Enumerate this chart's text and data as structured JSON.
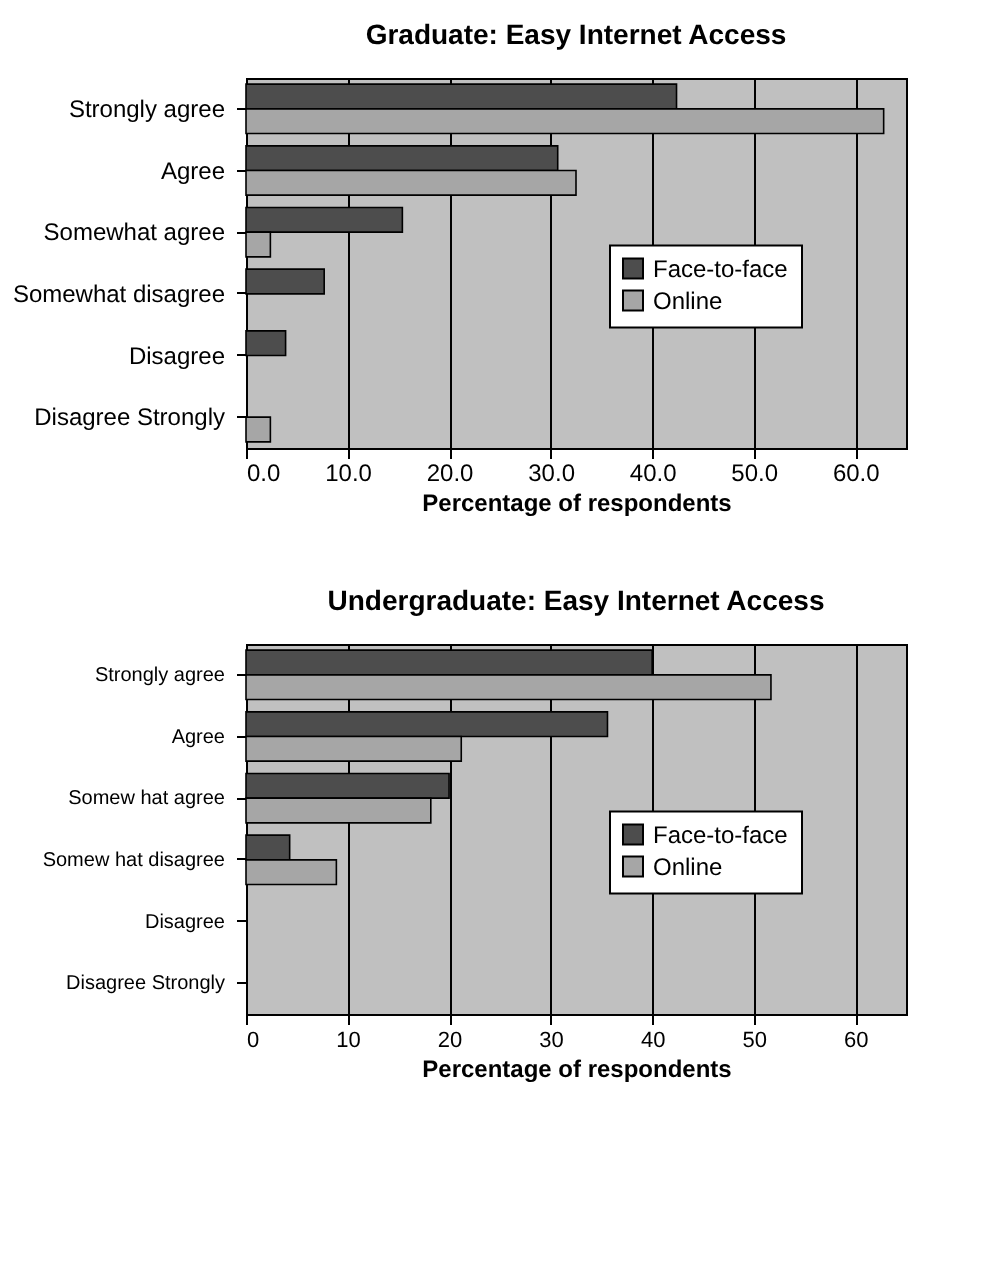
{
  "chart_data": [
    {
      "type": "bar",
      "orientation": "horizontal",
      "title": "Graduate: Easy Internet Access",
      "xlabel": "Percentage of respondents",
      "categories": [
        "Strongly agree",
        "Agree",
        "Somewhat agree",
        "Somewhat disagree",
        "Disagree",
        "Disagree Strongly"
      ],
      "series": [
        {
          "name": "Face-to-face",
          "color": "#4d4d4d",
          "values": [
            42.4,
            30.7,
            15.4,
            7.7,
            3.9,
            null
          ]
        },
        {
          "name": "Online",
          "color": "#a6a6a6",
          "values": [
            62.8,
            32.5,
            2.4,
            null,
            null,
            2.4
          ]
        }
      ],
      "xlim": [
        0,
        65
      ],
      "xticks": [
        {
          "value": 0,
          "label": "0.0"
        },
        {
          "value": 10,
          "label": "10.0"
        },
        {
          "value": 20,
          "label": "20.0"
        },
        {
          "value": 30,
          "label": "30.0"
        },
        {
          "value": 40,
          "label": "40.0"
        },
        {
          "value": 50,
          "label": "50.0"
        },
        {
          "value": 60,
          "label": "60.0"
        }
      ],
      "grid": "x",
      "legend": "right"
    },
    {
      "type": "bar",
      "orientation": "horizontal",
      "title": "Undergraduate: Easy Internet Access",
      "xlabel": "Percentage of respondents",
      "categories": [
        "Strongly agree",
        "Agree",
        "Somew hat agree",
        "Somew hat disagree",
        "Disagree",
        "Disagree Strongly"
      ],
      "series": [
        {
          "name": "Face-to-face",
          "color": "#4d4d4d",
          "values": [
            40.0,
            35.6,
            20.0,
            4.3,
            null,
            null
          ]
        },
        {
          "name": "Online",
          "color": "#a6a6a6",
          "values": [
            51.7,
            21.2,
            18.2,
            8.9,
            null,
            null
          ]
        }
      ],
      "xlim": [
        0,
        65
      ],
      "xticks": [
        0,
        10,
        20,
        30,
        40,
        50,
        60
      ],
      "grid": "x",
      "legend": "right"
    }
  ]
}
